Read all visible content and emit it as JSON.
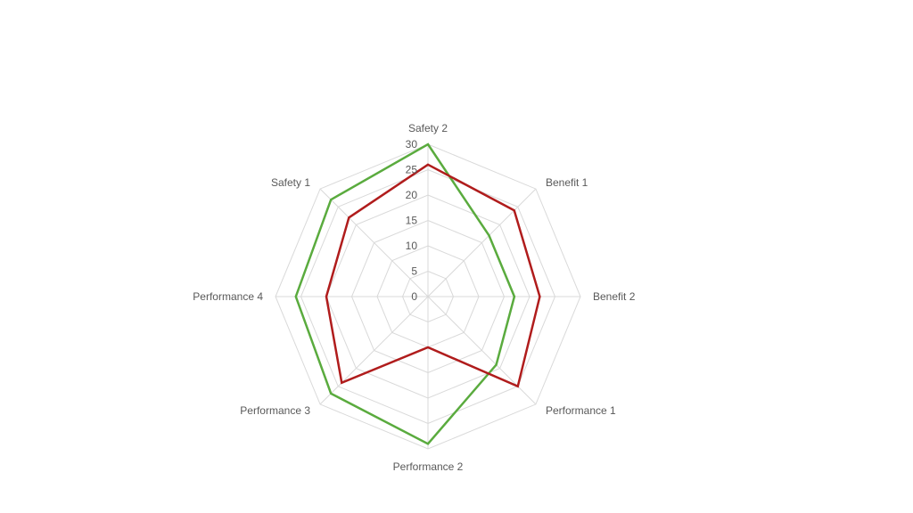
{
  "chart_data": {
    "type": "radar",
    "title": "",
    "categories": [
      "Safety 2",
      "Benefit 1",
      "Benefit 2",
      "Performance 1",
      "Performance 2",
      "Performance 3",
      "Performance 4",
      "Safety 1"
    ],
    "rlim": [
      0,
      30
    ],
    "ticks": [
      "0",
      "5",
      "10",
      "15",
      "20",
      "25",
      "30"
    ],
    "grid": true,
    "legend": "none",
    "series": [
      {
        "color": "#5aab3e",
        "values": [
          30,
          17,
          17,
          19,
          29,
          27,
          26,
          27
        ]
      },
      {
        "color": "#b01c1c",
        "values": [
          26,
          24,
          22,
          25,
          10,
          24,
          20,
          22
        ]
      }
    ]
  }
}
